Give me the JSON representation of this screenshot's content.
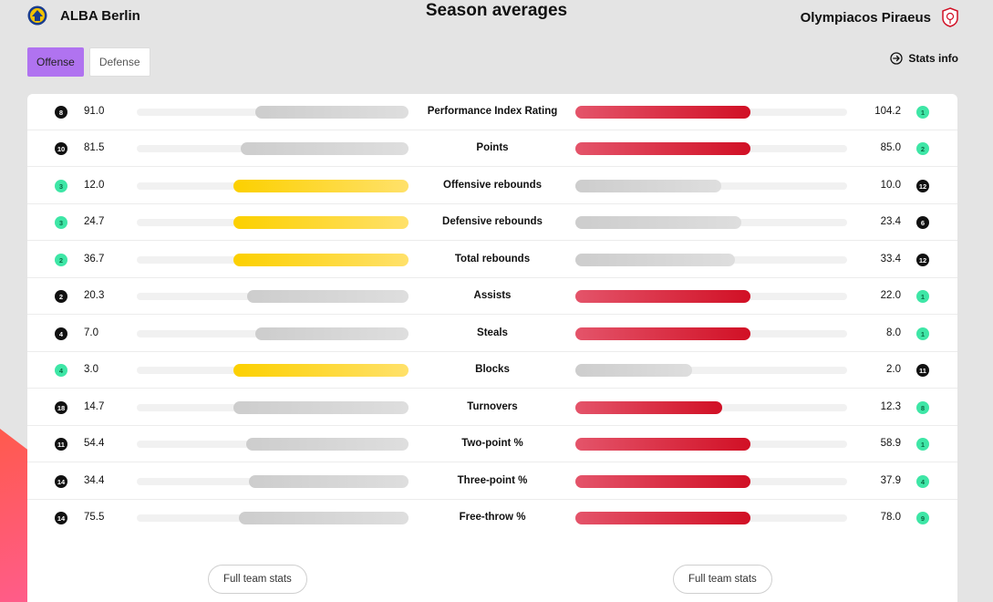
{
  "header": {
    "title": "Season averages",
    "home_team": "ALBA Berlin",
    "away_team": "Olympiacos Piraeus"
  },
  "tabs": [
    {
      "label": "Offense",
      "active": true
    },
    {
      "label": "Defense",
      "active": false
    }
  ],
  "stats_info_label": "Stats info",
  "stats": [
    {
      "label": "Performance Index Rating",
      "home_value": "91.0",
      "home_rank": "8",
      "home_rank_style": "black",
      "home_bar_color": "gray",
      "away_value": "104.2",
      "away_rank": "1",
      "away_rank_style": "green",
      "away_bar_color": "red"
    },
    {
      "label": "Points",
      "home_value": "81.5",
      "home_rank": "10",
      "home_rank_style": "black",
      "home_bar_color": "gray",
      "away_value": "85.0",
      "away_rank": "2",
      "away_rank_style": "green",
      "away_bar_color": "red"
    },
    {
      "label": "Offensive rebounds",
      "home_value": "12.0",
      "home_rank": "3",
      "home_rank_style": "green",
      "home_bar_color": "yellow",
      "away_value": "10.0",
      "away_rank": "12",
      "away_rank_style": "black",
      "away_bar_color": "gray"
    },
    {
      "label": "Defensive rebounds",
      "home_value": "24.7",
      "home_rank": "3",
      "home_rank_style": "green",
      "home_bar_color": "yellow",
      "away_value": "23.4",
      "away_rank": "6",
      "away_rank_style": "black",
      "away_bar_color": "gray"
    },
    {
      "label": "Total rebounds",
      "home_value": "36.7",
      "home_rank": "2",
      "home_rank_style": "green",
      "home_bar_color": "yellow",
      "away_value": "33.4",
      "away_rank": "12",
      "away_rank_style": "black",
      "away_bar_color": "gray"
    },
    {
      "label": "Assists",
      "home_value": "20.3",
      "home_rank": "2",
      "home_rank_style": "black",
      "home_bar_color": "gray",
      "away_value": "22.0",
      "away_rank": "1",
      "away_rank_style": "green",
      "away_bar_color": "red"
    },
    {
      "label": "Steals",
      "home_value": "7.0",
      "home_rank": "4",
      "home_rank_style": "black",
      "home_bar_color": "gray",
      "away_value": "8.0",
      "away_rank": "1",
      "away_rank_style": "green",
      "away_bar_color": "red"
    },
    {
      "label": "Blocks",
      "home_value": "3.0",
      "home_rank": "4",
      "home_rank_style": "green",
      "home_bar_color": "yellow",
      "away_value": "2.0",
      "away_rank": "11",
      "away_rank_style": "black",
      "away_bar_color": "gray"
    },
    {
      "label": "Turnovers",
      "home_value": "14.7",
      "home_rank": "18",
      "home_rank_style": "black",
      "home_bar_color": "gray",
      "away_value": "12.3",
      "away_rank": "8",
      "away_rank_style": "green",
      "away_bar_color": "red"
    },
    {
      "label": "Two-point %",
      "home_value": "54.4",
      "home_rank": "11",
      "home_rank_style": "black",
      "home_bar_color": "gray",
      "away_value": "58.9",
      "away_rank": "1",
      "away_rank_style": "green",
      "away_bar_color": "red"
    },
    {
      "label": "Three-point %",
      "home_value": "34.4",
      "home_rank": "14",
      "home_rank_style": "black",
      "home_bar_color": "gray",
      "away_value": "37.9",
      "away_rank": "4",
      "away_rank_style": "green",
      "away_bar_color": "red"
    },
    {
      "label": "Free-throw %",
      "home_value": "75.5",
      "home_rank": "14",
      "home_rank_style": "black",
      "home_bar_color": "gray",
      "away_value": "78.0",
      "away_rank": "9",
      "away_rank_style": "green",
      "away_bar_color": "red"
    }
  ],
  "full_team_stats_left": "Full team stats",
  "full_team_stats_right": "Full team stats",
  "colors": {
    "active_tab": "#b073f0",
    "leader_home": "#fcd000",
    "leader_away": "#d11025",
    "neutral_bar": "#cdcdcd",
    "rank_top": "#3ee6a6"
  }
}
